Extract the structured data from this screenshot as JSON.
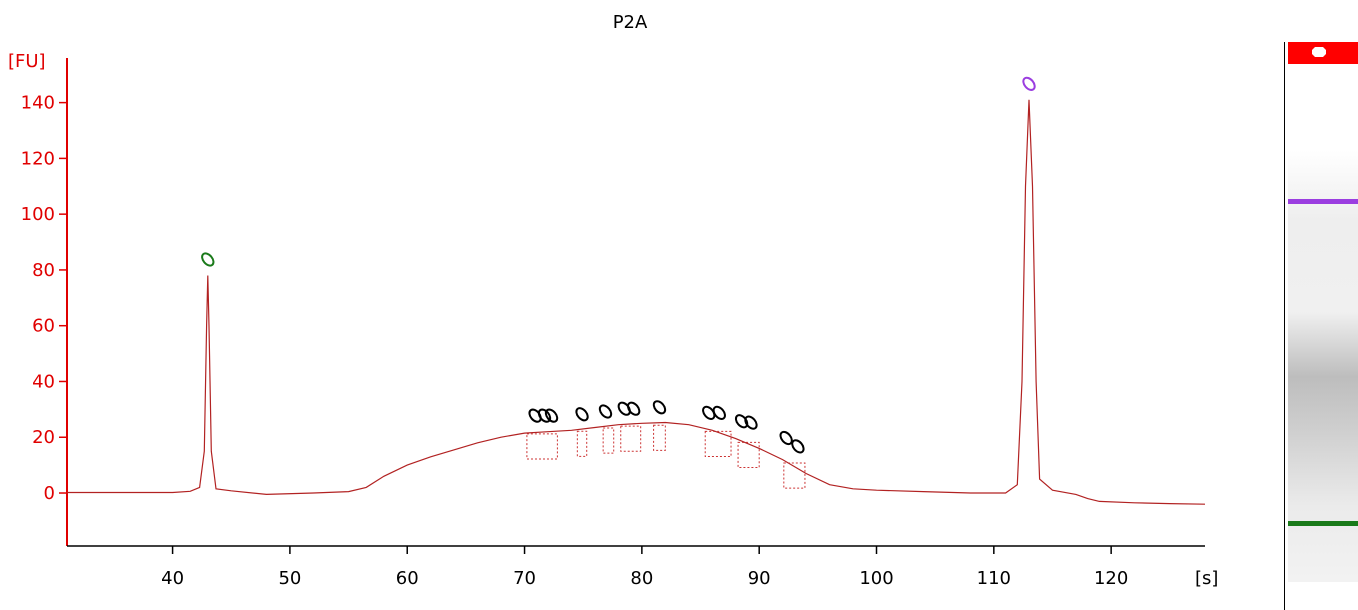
{
  "chart_data": {
    "type": "line",
    "title": "P2A",
    "ylabel": "[FU]",
    "xlabel": "[s]",
    "xlim": [
      31,
      128
    ],
    "ylim": [
      -19,
      156
    ],
    "xticks": [
      40,
      50,
      60,
      70,
      80,
      90,
      100,
      110,
      120
    ],
    "yticks": [
      0,
      20,
      40,
      60,
      80,
      100,
      120,
      140
    ],
    "series": [
      {
        "color": "#b22222",
        "points": [
          [
            31,
            0.2
          ],
          [
            40,
            0.2
          ],
          [
            41.5,
            0.6
          ],
          [
            42.3,
            2
          ],
          [
            42.7,
            15
          ],
          [
            42.9,
            60
          ],
          [
            43.0,
            78
          ],
          [
            43.1,
            60
          ],
          [
            43.3,
            15
          ],
          [
            43.7,
            1.5
          ],
          [
            45,
            0.8
          ],
          [
            48,
            -0.5
          ],
          [
            52,
            0
          ],
          [
            55,
            0.5
          ],
          [
            56.5,
            2
          ],
          [
            58,
            6
          ],
          [
            60,
            10
          ],
          [
            62,
            13
          ],
          [
            64,
            15.5
          ],
          [
            66,
            18
          ],
          [
            68,
            20
          ],
          [
            70,
            21.5
          ],
          [
            72,
            22
          ],
          [
            74,
            22.5
          ],
          [
            76,
            23.5
          ],
          [
            78,
            24.5
          ],
          [
            80,
            25
          ],
          [
            82,
            25.3
          ],
          [
            84,
            24.5
          ],
          [
            86,
            22.5
          ],
          [
            88,
            19.5
          ],
          [
            90,
            16
          ],
          [
            92,
            12
          ],
          [
            94,
            7
          ],
          [
            96,
            3
          ],
          [
            98,
            1.5
          ],
          [
            100,
            1
          ],
          [
            104,
            0.5
          ],
          [
            108,
            0
          ],
          [
            111,
            0
          ],
          [
            112,
            3
          ],
          [
            112.4,
            40
          ],
          [
            112.7,
            110
          ],
          [
            113.0,
            141
          ],
          [
            113.3,
            110
          ],
          [
            113.6,
            40
          ],
          [
            113.9,
            5
          ],
          [
            115,
            1
          ],
          [
            117,
            -0.5
          ],
          [
            118,
            -2
          ],
          [
            119,
            -3
          ],
          [
            122,
            -3.5
          ],
          [
            125,
            -3.8
          ],
          [
            128,
            -4
          ]
        ]
      }
    ],
    "peaks": [
      {
        "x": 43.0,
        "y": 78,
        "color": "#1a7a1a"
      },
      {
        "x": 70.9,
        "y": 22,
        "color": "#000000"
      },
      {
        "x": 71.7,
        "y": 22,
        "color": "#000000"
      },
      {
        "x": 72.3,
        "y": 22,
        "color": "#000000"
      },
      {
        "x": 74.9,
        "y": 22.5,
        "color": "#000000"
      },
      {
        "x": 76.9,
        "y": 23.5,
        "color": "#000000"
      },
      {
        "x": 78.5,
        "y": 24.5,
        "color": "#000000"
      },
      {
        "x": 79.3,
        "y": 24.5,
        "color": "#000000"
      },
      {
        "x": 81.5,
        "y": 25,
        "color": "#000000"
      },
      {
        "x": 85.7,
        "y": 23,
        "color": "#000000"
      },
      {
        "x": 86.6,
        "y": 23,
        "color": "#000000"
      },
      {
        "x": 88.5,
        "y": 20,
        "color": "#000000"
      },
      {
        "x": 89.3,
        "y": 19.5,
        "color": "#000000"
      },
      {
        "x": 92.3,
        "y": 14,
        "color": "#000000"
      },
      {
        "x": 93.3,
        "y": 11,
        "color": "#000000"
      },
      {
        "x": 113.0,
        "y": 141,
        "color": "#9b3ee0"
      }
    ],
    "regions": [
      [
        70.2,
        72.8
      ],
      [
        74.5,
        75.3
      ],
      [
        76.7,
        77.6
      ],
      [
        78.2,
        79.9
      ],
      [
        81,
        82
      ],
      [
        85.4,
        87.6
      ],
      [
        88.2,
        90
      ],
      [
        92.1,
        93.9
      ]
    ],
    "grid": false,
    "legend": "none"
  },
  "gel": {
    "top_color": "#ff0000",
    "upper_marker_color": "#9b3ee0",
    "lower_marker_color": "#1a7a1a"
  }
}
